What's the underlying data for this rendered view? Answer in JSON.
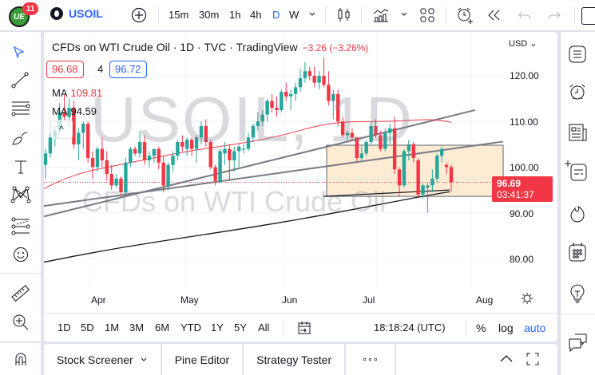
{
  "topbar": {
    "logo_text": "UE",
    "notification_count": "11",
    "symbol": "USOIL",
    "intervals": [
      "15m",
      "30m",
      "1h",
      "4h",
      "D",
      "W"
    ],
    "active_interval": "D",
    "icons": [
      "add-symbol-icon",
      "candles-icon",
      "indicators-icon",
      "layouts-icon",
      "alert-icon",
      "replay-icon",
      "undo-icon",
      "redo-icon"
    ]
  },
  "legend": {
    "title": "CFDs on WTI Crude Oil · 1D · TVC · TradingView",
    "change": "−3.26 (−3.26%)",
    "bid": "96.68",
    "spread": "4",
    "ask": "96.72",
    "ma1_label": "MA",
    "ma1_value": "109.81",
    "ma2_label": "MA",
    "ma2_value": "94.59",
    "collapse": "^"
  },
  "watermark": {
    "line1": "USOIL, 1D",
    "line2": "CFDs on WTI Crude Oil"
  },
  "price_axis": {
    "currency": "USD",
    "labels": [
      "120.00",
      "110.00",
      "100.00",
      "90.00",
      "80.00"
    ],
    "current_price": "96.69",
    "countdown": "03:41:37"
  },
  "time_axis": {
    "labels": [
      "Apr",
      "May",
      "Jun",
      "Jul",
      "Aug"
    ]
  },
  "range_bar": {
    "ranges": [
      "1D",
      "5D",
      "1M",
      "3M",
      "6M",
      "YTD",
      "1Y",
      "5Y",
      "All"
    ],
    "clock": "18:18:24 (UTC)",
    "percent": "%",
    "log": "log",
    "auto": "auto"
  },
  "bottom_panel": {
    "tabs": [
      "Stock Screener",
      "Pine Editor",
      "Strategy Tester"
    ],
    "more": "∘∘∘"
  },
  "colors": {
    "up": "#26a69a",
    "down": "#f23645",
    "accent": "#2962ff",
    "ma_fast": "#f23645",
    "ma_slow": "#131722",
    "zone_fill": "#fdebd3"
  },
  "chart_data": {
    "type": "candlestick",
    "title": "CFDs on WTI Crude Oil · 1D · TVC",
    "y_ticks": [
      80,
      90,
      100,
      110,
      120
    ],
    "x_ticks": [
      "Apr",
      "May",
      "Jun",
      "Jul",
      "Aug"
    ],
    "last_price": 96.69,
    "ma_fast_last": 109.81,
    "ma_slow_last": 94.59,
    "candles_ohlc": [
      [
        100.5,
        104.0,
        97.5,
        103.0
      ],
      [
        103.0,
        107.5,
        102.0,
        106.5
      ],
      [
        106.5,
        109.0,
        104.5,
        108.0
      ],
      [
        108.0,
        114.0,
        107.0,
        112.0
      ],
      [
        112.0,
        116.0,
        110.0,
        111.0
      ],
      [
        111.0,
        115.0,
        109.0,
        113.0
      ],
      [
        113.0,
        114.5,
        104.0,
        105.0
      ],
      [
        105.0,
        108.5,
        101.5,
        107.5
      ],
      [
        107.5,
        110.0,
        104.0,
        109.5
      ],
      [
        109.5,
        110.0,
        101.0,
        102.0
      ],
      [
        102.0,
        103.5,
        97.5,
        100.0
      ],
      [
        100.0,
        104.5,
        99.0,
        104.0
      ],
      [
        104.0,
        106.5,
        100.0,
        101.5
      ],
      [
        101.5,
        103.5,
        97.0,
        98.5
      ],
      [
        98.5,
        100.5,
        95.0,
        96.0
      ],
      [
        96.0,
        98.5,
        95.5,
        97.5
      ],
      [
        97.5,
        98.0,
        93.5,
        94.5
      ],
      [
        94.5,
        102.0,
        94.0,
        101.0
      ],
      [
        101.0,
        104.5,
        100.0,
        104.0
      ],
      [
        104.0,
        104.5,
        102.5,
        103.0
      ],
      [
        103.0,
        108.0,
        102.0,
        105.5
      ],
      [
        105.5,
        107.0,
        100.5,
        101.5
      ],
      [
        101.5,
        103.5,
        100.0,
        102.5
      ],
      [
        102.5,
        104.0,
        101.0,
        104.0
      ],
      [
        104.0,
        104.5,
        99.5,
        101.0
      ],
      [
        101.0,
        102.5,
        94.5,
        96.0
      ],
      [
        96.0,
        101.0,
        95.0,
        100.5
      ],
      [
        100.5,
        103.5,
        99.0,
        102.5
      ],
      [
        102.5,
        106.0,
        101.5,
        105.5
      ],
      [
        105.5,
        107.0,
        103.5,
        104.5
      ],
      [
        104.0,
        106.5,
        102.5,
        106.0
      ],
      [
        106.0,
        106.5,
        102.5,
        104.0
      ],
      [
        104.0,
        107.0,
        101.0,
        106.5
      ],
      [
        106.5,
        110.0,
        105.0,
        109.0
      ],
      [
        109.0,
        110.5,
        104.5,
        105.5
      ],
      [
        105.5,
        106.0,
        99.5,
        100.0
      ],
      [
        100.0,
        100.5,
        96.0,
        97.0
      ],
      [
        97.0,
        104.0,
        96.5,
        103.5
      ],
      [
        103.0,
        105.5,
        100.5,
        104.0
      ],
      [
        104.0,
        105.0,
        97.0,
        101.5
      ],
      [
        101.5,
        104.5,
        99.0,
        103.5
      ],
      [
        103.5,
        105.0,
        100.0,
        104.5
      ],
      [
        104.0,
        105.0,
        103.0,
        104.0
      ],
      [
        104.0,
        107.5,
        103.5,
        106.5
      ],
      [
        106.5,
        109.5,
        105.5,
        109.0
      ],
      [
        109.0,
        112.0,
        108.0,
        110.0
      ],
      [
        110.0,
        112.5,
        109.0,
        111.5
      ],
      [
        111.5,
        115.0,
        110.0,
        114.5
      ],
      [
        114.5,
        116.0,
        112.0,
        113.0
      ],
      [
        113.0,
        115.5,
        111.0,
        112.5
      ],
      [
        112.5,
        117.0,
        112.0,
        116.5
      ],
      [
        116.5,
        118.5,
        114.5,
        115.5
      ],
      [
        115.5,
        117.0,
        112.5,
        116.0
      ],
      [
        116.0,
        118.5,
        114.5,
        117.5
      ],
      [
        117.5,
        121.5,
        116.5,
        119.5
      ],
      [
        119.5,
        123.0,
        118.5,
        121.0
      ],
      [
        121.0,
        122.0,
        119.0,
        120.0
      ],
      [
        120.0,
        122.0,
        117.5,
        118.5
      ],
      [
        118.5,
        121.0,
        117.0,
        120.0
      ],
      [
        120.0,
        124.0,
        117.5,
        118.0
      ],
      [
        118.0,
        121.0,
        113.5,
        114.5
      ],
      [
        114.5,
        117.0,
        110.5,
        116.0
      ],
      [
        116.0,
        117.0,
        109.0,
        110.0
      ],
      [
        110.0,
        111.0,
        106.5,
        107.0
      ],
      [
        107.0,
        108.0,
        106.0,
        107.5
      ],
      [
        107.5,
        108.5,
        106.0,
        106.5
      ],
      [
        106.5,
        106.5,
        101.0,
        102.0
      ],
      [
        102.0,
        104.5,
        101.5,
        103.0
      ],
      [
        103.0,
        106.0,
        102.5,
        105.5
      ],
      [
        105.5,
        110.0,
        105.0,
        109.0
      ],
      [
        109.0,
        110.5,
        106.5,
        107.0
      ],
      [
        107.0,
        108.0,
        103.5,
        104.0
      ],
      [
        104.0,
        108.5,
        103.5,
        107.5
      ],
      [
        107.5,
        109.5,
        105.0,
        108.5
      ],
      [
        108.5,
        111.0,
        98.5,
        99.5
      ],
      [
        99.5,
        100.0,
        93.5,
        96.0
      ],
      [
        96.0,
        104.0,
        95.5,
        103.5
      ],
      [
        103.5,
        106.0,
        101.5,
        105.0
      ],
      [
        105.0,
        105.5,
        101.0,
        102.0
      ],
      [
        101.5,
        102.0,
        93.5,
        94.0
      ],
      [
        94.0,
        96.5,
        93.0,
        96.0
      ],
      [
        95.5,
        96.5,
        90.0,
        96.0
      ],
      [
        96.0,
        99.5,
        94.5,
        97.5
      ],
      [
        97.5,
        103.0,
        96.5,
        102.5
      ],
      [
        102.5,
        104.5,
        101.0,
        104.0
      ],
      [
        100.5,
        101.0,
        98.5,
        100.0
      ],
      [
        100.0,
        100.5,
        94.5,
        96.69
      ]
    ]
  }
}
